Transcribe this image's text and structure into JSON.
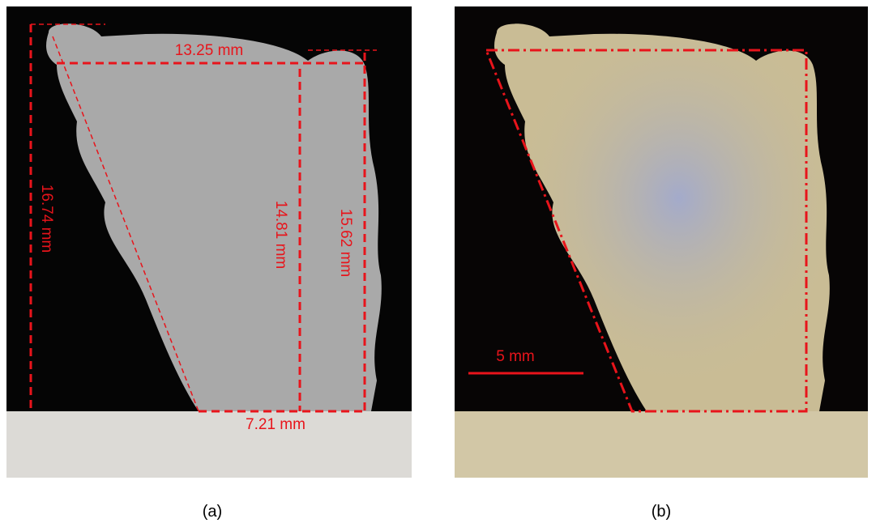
{
  "panels": [
    {
      "label": "(a)",
      "annotations": {
        "top_width": "13.25 mm",
        "total_height": "16.74 mm",
        "inner_height": "14.81 mm",
        "right_height": "15.62 mm",
        "bottom_width": "7.21 mm"
      }
    },
    {
      "label": "(b)",
      "scale_bar": "5 mm"
    }
  ]
}
